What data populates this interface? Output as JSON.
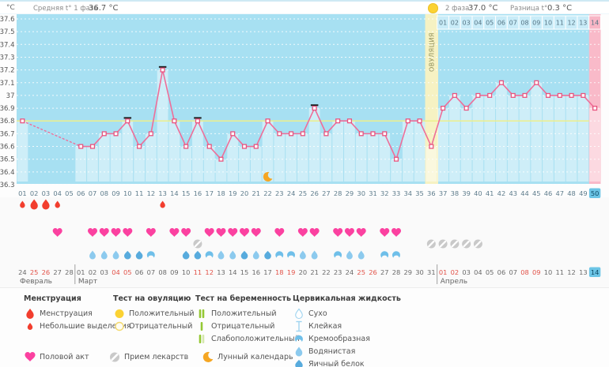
{
  "colors": {
    "chart_bg": "#a7e0f2",
    "fill_bar": "rgba(255,255,255,0.45)",
    "grid": "#ffffff",
    "coverline": "#edef8c",
    "temp_line": "#ee6e99",
    "marker_stroke": "#e8547f",
    "ovulation_band": "#f6f2c3",
    "ovulation_text": "#8f8f5a",
    "pregnancy_band": "#f9bac9",
    "dpo_cell": "#c9ecf8",
    "dpo_cell_last": "#f8b6c6",
    "axis_text": "#5e7c8c",
    "ytick_text": "#555555",
    "today_bg": "#6cc5e6",
    "today_text": "#0d4a66",
    "date_text": "#6a6a6a",
    "weekend_text": "#e25248",
    "menses": "#f23e2e",
    "heart": "#fb41a0",
    "pill": "#c9c9c9",
    "fluid_watery": "#8ccaee",
    "fluid_eggwhite": "#58abdd",
    "fluid_creamy": "#6fbfe9",
    "fluid_outline": "#9fd4f0",
    "moon": "#f5a623",
    "test_yellow": "#fbd233",
    "test_yellow_outline": "#f3d96e",
    "test_green": "#94c834",
    "test_green_pale": "#d5e8ad",
    "tick_black": "#1a1a1a",
    "month_sep": "#8a8a8a"
  },
  "header": {
    "unit": "°C",
    "phase1_label": "Средняя t° 1 фаза",
    "phase1_value": "36.7 °C",
    "phase2_label": "2 фаза",
    "phase2_value": "37.0 °C",
    "diff_label": "Разница t°",
    "diff_value": "0.3 °C"
  },
  "chart_data": {
    "type": "line",
    "title": "",
    "ylabel": "°C",
    "ylim": [
      36.3,
      37.6
    ],
    "ytick_step": 0.1,
    "xlabel": "",
    "days_total": 50,
    "current_day": 50,
    "coverline": 36.8,
    "ovulation_day": 36,
    "ovulation_label": "ОВУЛЯЦИЯ",
    "pregnancy_test_zone_day": 50,
    "moon_day": 22,
    "dpo_labels": [
      "01",
      "02",
      "03",
      "04",
      "05",
      "06",
      "07",
      "08",
      "09",
      "10",
      "11",
      "12",
      "13",
      "14"
    ],
    "temps": [
      {
        "d": 1,
        "t": 36.8
      },
      {
        "d": 6,
        "t": 36.6
      },
      {
        "d": 7,
        "t": 36.6
      },
      {
        "d": 8,
        "t": 36.7
      },
      {
        "d": 9,
        "t": 36.7
      },
      {
        "d": 10,
        "t": 36.8,
        "m": 1
      },
      {
        "d": 11,
        "t": 36.6
      },
      {
        "d": 12,
        "t": 36.7
      },
      {
        "d": 13,
        "t": 37.2,
        "m": 1
      },
      {
        "d": 14,
        "t": 36.8
      },
      {
        "d": 15,
        "t": 36.6
      },
      {
        "d": 16,
        "t": 36.8,
        "m": 1
      },
      {
        "d": 17,
        "t": 36.6
      },
      {
        "d": 18,
        "t": 36.5
      },
      {
        "d": 19,
        "t": 36.7
      },
      {
        "d": 20,
        "t": 36.6
      },
      {
        "d": 21,
        "t": 36.6
      },
      {
        "d": 22,
        "t": 36.8
      },
      {
        "d": 23,
        "t": 36.7
      },
      {
        "d": 24,
        "t": 36.7
      },
      {
        "d": 25,
        "t": 36.7
      },
      {
        "d": 26,
        "t": 36.9,
        "m": 1
      },
      {
        "d": 27,
        "t": 36.7
      },
      {
        "d": 28,
        "t": 36.8
      },
      {
        "d": 29,
        "t": 36.8
      },
      {
        "d": 30,
        "t": 36.7
      },
      {
        "d": 31,
        "t": 36.7
      },
      {
        "d": 32,
        "t": 36.7
      },
      {
        "d": 33,
        "t": 36.5
      },
      {
        "d": 34,
        "t": 36.8
      },
      {
        "d": 35,
        "t": 36.8
      },
      {
        "d": 36,
        "t": 36.6
      },
      {
        "d": 37,
        "t": 36.9
      },
      {
        "d": 38,
        "t": 37
      },
      {
        "d": 39,
        "t": 36.9
      },
      {
        "d": 40,
        "t": 37
      },
      {
        "d": 41,
        "t": 37
      },
      {
        "d": 42,
        "t": 37.1
      },
      {
        "d": 43,
        "t": 37
      },
      {
        "d": 44,
        "t": 37
      },
      {
        "d": 45,
        "t": 37.1
      },
      {
        "d": 46,
        "t": 37
      },
      {
        "d": 47,
        "t": 37
      },
      {
        "d": 48,
        "t": 37
      },
      {
        "d": 49,
        "t": 37
      },
      {
        "d": 50,
        "t": 36.9
      }
    ]
  },
  "tracking": {
    "menses": [
      {
        "d": 1,
        "s": "light"
      },
      {
        "d": 2,
        "s": "heavy"
      },
      {
        "d": 3,
        "s": "heavy"
      },
      {
        "d": 4,
        "s": "light"
      },
      {
        "d": 13,
        "s": "light"
      }
    ],
    "intercourse_days": [
      4,
      7,
      8,
      9,
      10,
      12,
      14,
      15,
      17,
      18,
      19,
      20,
      21,
      23,
      25,
      26,
      28,
      29,
      30,
      32,
      33
    ],
    "medication_days": [
      16,
      36,
      37,
      38,
      39,
      40
    ],
    "fluid": [
      {
        "d": 7,
        "f": "watery"
      },
      {
        "d": 8,
        "f": "watery"
      },
      {
        "d": 9,
        "f": "watery"
      },
      {
        "d": 10,
        "f": "eggwhite"
      },
      {
        "d": 11,
        "f": "eggwhite"
      },
      {
        "d": 12,
        "f": "creamy"
      },
      {
        "d": 15,
        "f": "eggwhite"
      },
      {
        "d": 16,
        "f": "eggwhite"
      },
      {
        "d": 17,
        "f": "creamy"
      },
      {
        "d": 18,
        "f": "watery"
      },
      {
        "d": 19,
        "f": "watery"
      },
      {
        "d": 20,
        "f": "eggwhite"
      },
      {
        "d": 21,
        "f": "watery"
      },
      {
        "d": 22,
        "f": "eggwhite"
      },
      {
        "d": 23,
        "f": "creamy"
      },
      {
        "d": 24,
        "f": "creamy"
      },
      {
        "d": 25,
        "f": "watery"
      },
      {
        "d": 26,
        "f": "watery"
      },
      {
        "d": 28,
        "f": "creamy"
      },
      {
        "d": 29,
        "f": "watery"
      },
      {
        "d": 30,
        "f": "watery"
      },
      {
        "d": 32,
        "f": "creamy"
      },
      {
        "d": 33,
        "f": "creamy"
      }
    ]
  },
  "calendar": {
    "months": [
      {
        "name": "Февраль",
        "dates": [
          {
            "t": "24"
          },
          {
            "t": "25",
            "w": 1
          },
          {
            "t": "26",
            "w": 1
          },
          {
            "t": "27"
          },
          {
            "t": "28"
          }
        ]
      },
      {
        "name": "Март",
        "dates": [
          {
            "t": "01"
          },
          {
            "t": "02"
          },
          {
            "t": "03"
          },
          {
            "t": "04",
            "w": 1
          },
          {
            "t": "05",
            "w": 1
          },
          {
            "t": "06"
          },
          {
            "t": "07"
          },
          {
            "t": "08"
          },
          {
            "t": "09"
          },
          {
            "t": "10"
          },
          {
            "t": "11",
            "w": 1
          },
          {
            "t": "12",
            "w": 1
          },
          {
            "t": "13"
          },
          {
            "t": "14"
          },
          {
            "t": "15"
          },
          {
            "t": "16"
          },
          {
            "t": "17"
          },
          {
            "t": "18",
            "w": 1
          },
          {
            "t": "19",
            "w": 1
          },
          {
            "t": "20"
          },
          {
            "t": "21"
          },
          {
            "t": "22"
          },
          {
            "t": "23"
          },
          {
            "t": "24"
          },
          {
            "t": "25",
            "w": 1
          },
          {
            "t": "26",
            "w": 1
          },
          {
            "t": "27"
          },
          {
            "t": "28"
          },
          {
            "t": "29"
          },
          {
            "t": "30"
          },
          {
            "t": "31"
          }
        ]
      },
      {
        "name": "Апрель",
        "dates": [
          {
            "t": "01",
            "w": 1
          },
          {
            "t": "02",
            "w": 1
          },
          {
            "t": "03"
          },
          {
            "t": "04"
          },
          {
            "t": "05"
          },
          {
            "t": "06"
          },
          {
            "t": "07"
          },
          {
            "t": "08",
            "w": 1
          },
          {
            "t": "09",
            "w": 1
          },
          {
            "t": "10"
          },
          {
            "t": "11"
          },
          {
            "t": "12"
          },
          {
            "t": "13"
          },
          {
            "t": "14",
            "cur": 1
          }
        ]
      }
    ]
  },
  "legend": {
    "sections": [
      {
        "title": "Менструация",
        "items": [
          {
            "icon": "drop-red-big",
            "label": "Менструация"
          },
          {
            "icon": "drop-red-small",
            "label": "Небольшие выделения"
          }
        ]
      },
      {
        "title": "Тест на овуляцию",
        "items": [
          {
            "icon": "circle-filled",
            "label": "Положительный"
          },
          {
            "icon": "circle-outline",
            "label": "Отрицательный"
          }
        ]
      },
      {
        "title": "Тест на беременность",
        "items": [
          {
            "icon": "bars-positive",
            "label": "Положительный"
          },
          {
            "icon": "bars-negative",
            "label": "Отрицательный"
          },
          {
            "icon": "bars-weak",
            "label": "Слабоположительный"
          }
        ]
      },
      {
        "title": "Цервикальная жидкость",
        "items": [
          {
            "icon": "drop-outline",
            "label": "Сухо"
          },
          {
            "icon": "sticky",
            "label": "Клейкая"
          },
          {
            "icon": "crescent-blue",
            "label": "Кремообразная"
          },
          {
            "icon": "drop-watery",
            "label": "Водянистая"
          },
          {
            "icon": "drop-eggwhite",
            "label": "Яичный белок"
          }
        ]
      }
    ],
    "footer": [
      {
        "icon": "heart",
        "label": "Половой акт"
      },
      {
        "icon": "pill",
        "label": "Прием лекарств"
      },
      {
        "icon": "moon",
        "label": "Лунный календарь"
      }
    ]
  }
}
